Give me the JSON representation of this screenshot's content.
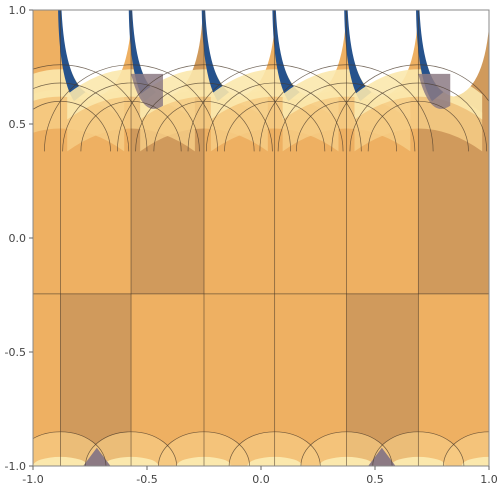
{
  "chart_data": {
    "type": "heatmap",
    "title": "",
    "xlabel": "",
    "ylabel": "",
    "xlim": [
      -1.0,
      1.0
    ],
    "ylim": [
      -1.0,
      1.0
    ],
    "x_ticks": [
      -1.0,
      -0.5,
      0.0,
      0.5,
      1.0
    ],
    "y_ticks": [
      -1.0,
      -0.5,
      0.0,
      0.5,
      1.0
    ],
    "x_tick_labels": [
      "-1.0",
      "-0.5",
      "0.0",
      "0.5",
      "1.0"
    ],
    "y_tick_labels": [
      "-1.0",
      "-0.5",
      "0.0",
      "0.5",
      "1.0"
    ],
    "grid": false,
    "legend": "none",
    "colors": {
      "light_orange": "#eeb062",
      "dark_tan": "#d09a5c",
      "pale_orange": "#f6cc85",
      "cream": "#fbe8ad",
      "gray_purple": "#8c7a84",
      "navy": "#26528c",
      "boundary": "#4a3a2a"
    },
    "vertical_lines_x": [
      -0.88,
      -0.57,
      -0.25,
      0.06,
      0.375,
      0.69
    ],
    "dark_bands_upper_x": [
      [
        -0.57,
        -0.25
      ],
      [
        0.69,
        1.0
      ]
    ],
    "dark_bands_lower_x": [
      [
        -0.88,
        -0.57
      ],
      [
        0.375,
        0.69
      ]
    ],
    "horizontal_line_y": -0.245,
    "top_cusp_centers_x": [
      -0.88,
      -0.57,
      -0.25,
      0.06,
      0.375,
      0.69
    ],
    "bottom_arc_centers_x": [
      -0.88,
      -0.57,
      -0.25,
      0.06,
      0.375,
      0.69,
      1.0
    ]
  }
}
